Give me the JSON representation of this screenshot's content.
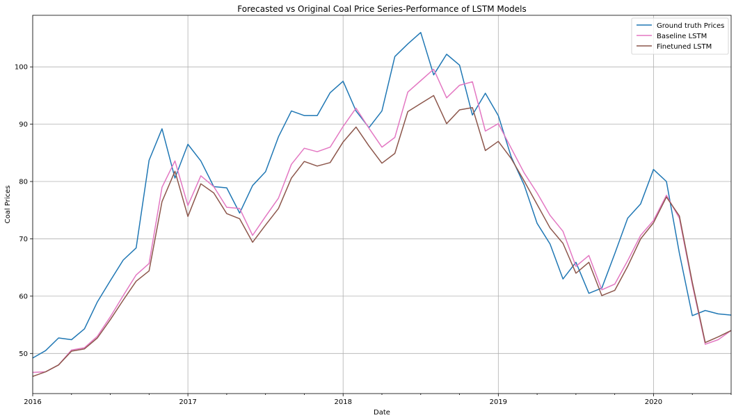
{
  "chart_data": {
    "type": "line",
    "title": "Forecasted vs Original Coal Price Series-Performance of LSTM Models",
    "xlabel": "Date",
    "ylabel": "Coal Prices",
    "xlim": [
      "2016-01",
      "2020-07"
    ],
    "ylim": [
      43,
      109
    ],
    "x_ticks": [
      "2016",
      "2017",
      "2018",
      "2019",
      "2020"
    ],
    "y_ticks": [
      50,
      60,
      70,
      80,
      90,
      100
    ],
    "grid": true,
    "legend_position": "top-right",
    "x": [
      "2016-01",
      "2016-02",
      "2016-03",
      "2016-04",
      "2016-05",
      "2016-06",
      "2016-07",
      "2016-08",
      "2016-09",
      "2016-10",
      "2016-11",
      "2016-12",
      "2017-01",
      "2017-02",
      "2017-03",
      "2017-04",
      "2017-05",
      "2017-06",
      "2017-07",
      "2017-08",
      "2017-09",
      "2017-10",
      "2017-11",
      "2017-12",
      "2018-01",
      "2018-02",
      "2018-03",
      "2018-04",
      "2018-05",
      "2018-06",
      "2018-07",
      "2018-08",
      "2018-09",
      "2018-10",
      "2018-11",
      "2018-12",
      "2019-01",
      "2019-02",
      "2019-03",
      "2019-04",
      "2019-05",
      "2019-06",
      "2019-07",
      "2019-08",
      "2019-09",
      "2019-10",
      "2019-11",
      "2019-12",
      "2020-01",
      "2020-02",
      "2020-03",
      "2020-04",
      "2020-05",
      "2020-06",
      "2020-07"
    ],
    "series": [
      {
        "name": "Ground truth Prices",
        "color": "#1f77b4",
        "values": [
          49.2,
          50.5,
          52.7,
          52.4,
          54.3,
          59.0,
          62.7,
          66.3,
          68.4,
          83.7,
          89.2,
          80.6,
          86.5,
          83.6,
          79.1,
          78.9,
          74.5,
          79.3,
          81.7,
          87.8,
          92.3,
          91.5,
          91.5,
          95.5,
          97.5,
          92.3,
          89.4,
          92.3,
          101.8,
          104.0,
          106.0,
          98.6,
          102.2,
          100.3,
          91.6,
          95.4,
          91.5,
          84.3,
          79.4,
          72.7,
          69.1,
          63.0,
          65.9,
          60.5,
          61.4,
          67.4,
          73.6,
          76.1,
          82.1,
          80.0,
          67.5,
          56.6,
          57.5,
          56.9,
          56.7
        ]
      },
      {
        "name": "Baseline LSTM",
        "color": "#e377c2",
        "values": [
          46.7,
          46.8,
          48.0,
          50.6,
          51.0,
          53.0,
          56.4,
          60.1,
          63.7,
          65.7,
          79.0,
          83.6,
          75.8,
          81.0,
          79.1,
          75.5,
          75.3,
          70.6,
          73.9,
          77.1,
          83.0,
          85.8,
          85.2,
          86.0,
          89.6,
          92.8,
          89.3,
          86.0,
          87.7,
          95.6,
          97.6,
          99.6,
          94.6,
          96.8,
          97.4,
          88.8,
          90.1,
          85.8,
          81.5,
          78.0,
          74.1,
          71.3,
          65.2,
          67.1,
          61.1,
          62.1,
          66.2,
          70.6,
          73.2,
          77.6,
          73.6,
          62.0,
          51.6,
          52.4,
          54.0
        ]
      },
      {
        "name": "Finetuned LSTM",
        "color": "#8c564b",
        "values": [
          46.0,
          46.8,
          48.0,
          50.4,
          50.8,
          52.7,
          55.9,
          59.3,
          62.6,
          64.4,
          76.5,
          81.8,
          73.9,
          79.6,
          78.0,
          74.4,
          73.5,
          69.4,
          72.4,
          75.3,
          80.6,
          83.5,
          82.7,
          83.3,
          86.9,
          89.5,
          86.2,
          83.2,
          84.9,
          92.2,
          93.6,
          95.0,
          90.1,
          92.5,
          92.9,
          85.4,
          87.0,
          84.0,
          80.1,
          76.0,
          71.9,
          69.2,
          64.0,
          65.9,
          60.1,
          61.0,
          65.2,
          70.0,
          72.8,
          77.3,
          74.0,
          62.4,
          51.9,
          52.9,
          54.0
        ]
      }
    ]
  }
}
